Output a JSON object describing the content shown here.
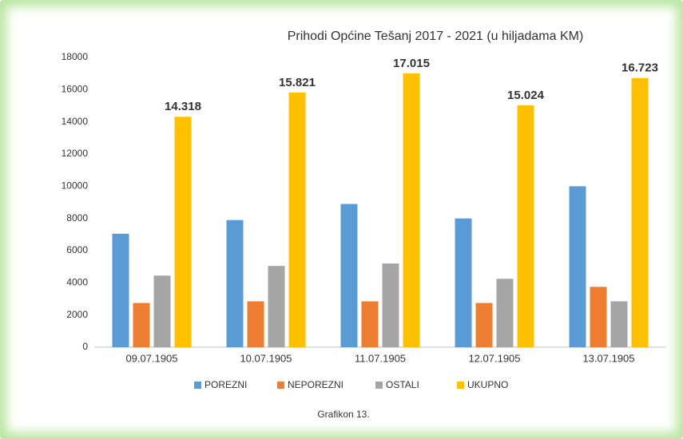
{
  "chart_data": {
    "type": "bar",
    "title": "Prihodi Općine Tešanj  2017 - 2021    (u hiljadama KM)",
    "caption": "Grafikon 13.",
    "categories": [
      "09.07.1905",
      "10.07.1905",
      "11.07.1905",
      "12.07.1905",
      "13.07.1905"
    ],
    "series": [
      {
        "name": "POREZNI",
        "color": "#5b9bd5",
        "values": [
          7050,
          7900,
          8900,
          8000,
          10000
        ]
      },
      {
        "name": "NEPOREZNI",
        "color": "#ed7d31",
        "values": [
          2750,
          2850,
          2850,
          2750,
          3750
        ]
      },
      {
        "name": "OSTALI",
        "color": "#a5a5a5",
        "values": [
          4450,
          5050,
          5200,
          4250,
          2850
        ]
      },
      {
        "name": "UKUPNO",
        "color": "#ffc000",
        "values": [
          14318,
          15821,
          17015,
          15024,
          16723
        ],
        "value_labels": [
          "14.318",
          "15.821",
          "17.015",
          "15.024",
          "16.723"
        ]
      }
    ],
    "ylim": [
      0,
      18000
    ],
    "yticks": [
      0,
      2000,
      4000,
      6000,
      8000,
      10000,
      12000,
      14000,
      16000,
      18000
    ],
    "grid": false,
    "legend": "bottom"
  }
}
